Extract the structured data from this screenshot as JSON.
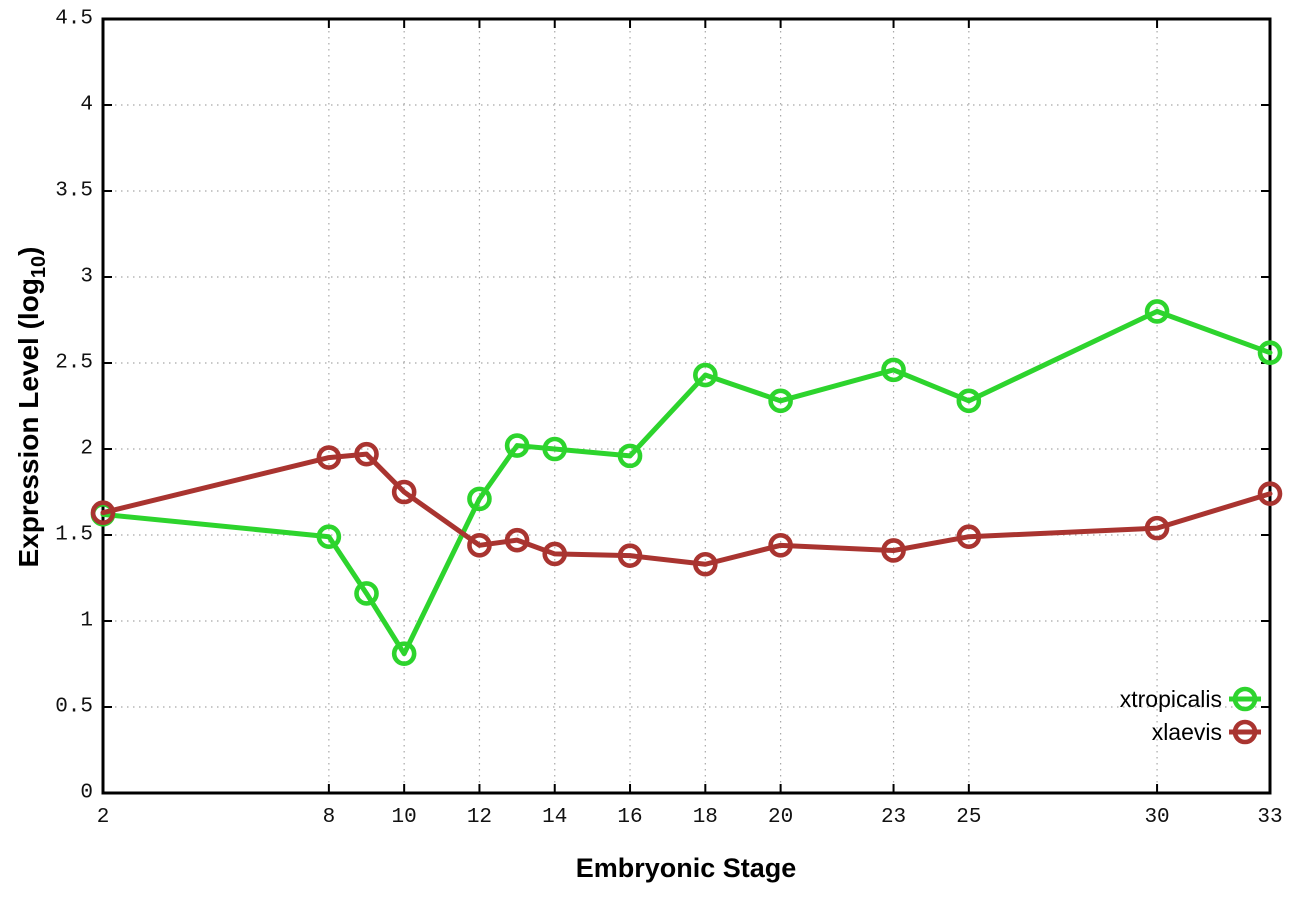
{
  "figure": {
    "background": "#ffffff",
    "axis_color": "#000000",
    "grid_color": "#a8a8a8",
    "tick_label_color": "#111111"
  },
  "chart_data": {
    "type": "line",
    "title": "",
    "xlabel": "Embryonic Stage",
    "ylabel": "Expression Level (log10)",
    "ylabel_parts": {
      "prefix": "Expression Level (log",
      "sub": "10",
      "suffix": ")"
    },
    "x": [
      2,
      8,
      9,
      10,
      12,
      13,
      14,
      16,
      18,
      20,
      23,
      25,
      30,
      33
    ],
    "series": [
      {
        "name": "xtropicalis",
        "color": "#2dd42d",
        "values": [
          1.62,
          1.49,
          1.16,
          0.81,
          1.71,
          2.02,
          2.0,
          1.96,
          2.43,
          2.28,
          2.46,
          2.28,
          2.8,
          2.56
        ]
      },
      {
        "name": "xlaevis",
        "color": "#a93430",
        "values": [
          1.63,
          1.95,
          1.97,
          1.75,
          1.44,
          1.47,
          1.39,
          1.38,
          1.33,
          1.44,
          1.41,
          1.49,
          1.54,
          1.74
        ]
      }
    ],
    "xticks": [
      2,
      8,
      10,
      12,
      14,
      16,
      18,
      20,
      23,
      25,
      30,
      33
    ],
    "yticks": [
      0,
      0.5,
      1,
      1.5,
      2,
      2.5,
      3,
      3.5,
      4,
      4.5
    ],
    "xlim": [
      2,
      33
    ],
    "ylim": [
      0,
      4.5
    ],
    "grid": true,
    "legend_position": "inside-bottom-right",
    "legend_entries": [
      "xtropicalis",
      "xlaevis"
    ]
  }
}
